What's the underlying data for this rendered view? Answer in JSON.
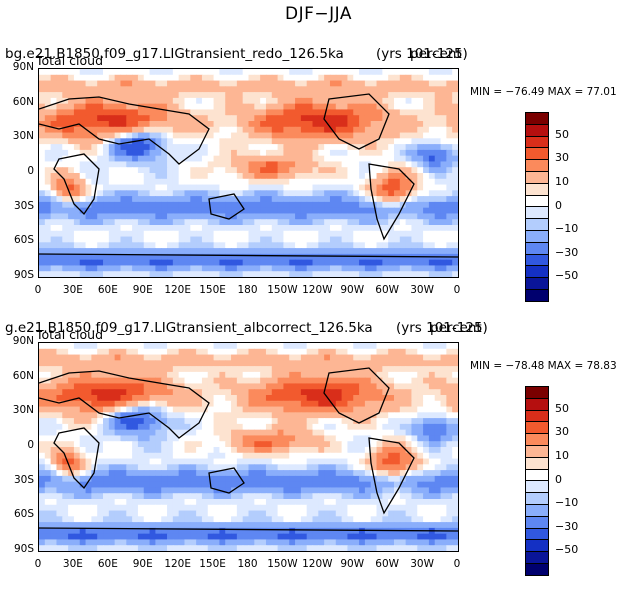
{
  "figure": {
    "title": "DJF−JJA",
    "variable_label": "Total cloud",
    "colorbar_labels": [
      "50",
      "30",
      "10",
      "0",
      "−10",
      "−30",
      "−50"
    ],
    "colorbar_colors": [
      "#7a0000",
      "#b50f0f",
      "#d92e1a",
      "#f25a2e",
      "#fb8a5c",
      "#fdb694",
      "#fde3d0",
      "#ffffff",
      "#dde9ff",
      "#b3cdfd",
      "#8aaefb",
      "#5e87f2",
      "#3158e0",
      "#1430c4",
      "#0a1599",
      "#00006e"
    ],
    "lat_labels": [
      "90N",
      "60N",
      "30N",
      "0",
      "30S",
      "60S",
      "90S"
    ],
    "lon_labels": [
      "0",
      "30E",
      "60E",
      "90E",
      "120E",
      "150E",
      "180",
      "150W",
      "120W",
      "90W",
      "60W",
      "30W",
      "0"
    ]
  },
  "panels": [
    {
      "run_title": "bg.e21.B1850.f09_g17.LIGtransient_redo_126.5ka",
      "years": "(yrs 101-125)",
      "period": "percent",
      "min_max": "MIN = −76.49 MAX =  77.01"
    },
    {
      "run_title": "g.e21.B1850.f09_g17.LIGtransient_albcorrect_126.5ka",
      "years": "(yrs 101-125)",
      "period": "percent",
      "min_max": "MIN = −78.48 MAX =  78.83"
    }
  ]
}
